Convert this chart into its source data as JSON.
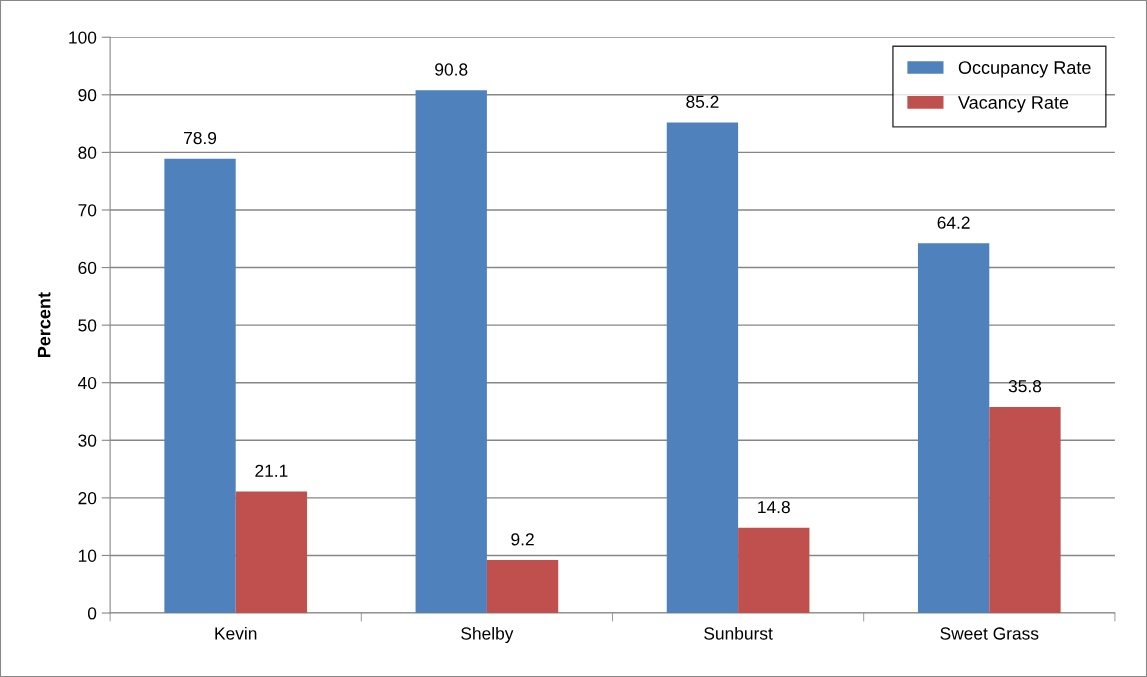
{
  "chart_data": {
    "type": "bar",
    "ylabel": "Percent",
    "categories": [
      "Kevin",
      "Shelby",
      "Sunburst",
      "Sweet Grass"
    ],
    "series": [
      {
        "name": "Occupancy Rate",
        "color": "#4f81bd",
        "values": [
          78.9,
          90.8,
          85.2,
          64.2
        ]
      },
      {
        "name": "Vacancy Rate",
        "color": "#c0504d",
        "values": [
          21.1,
          9.2,
          14.8,
          35.8
        ]
      }
    ],
    "ylim": [
      0,
      100
    ],
    "yticks": [
      0,
      10,
      20,
      30,
      40,
      50,
      60,
      70,
      80,
      90,
      100
    ],
    "grid": "y",
    "legend": "top right",
    "data_labels": true
  }
}
